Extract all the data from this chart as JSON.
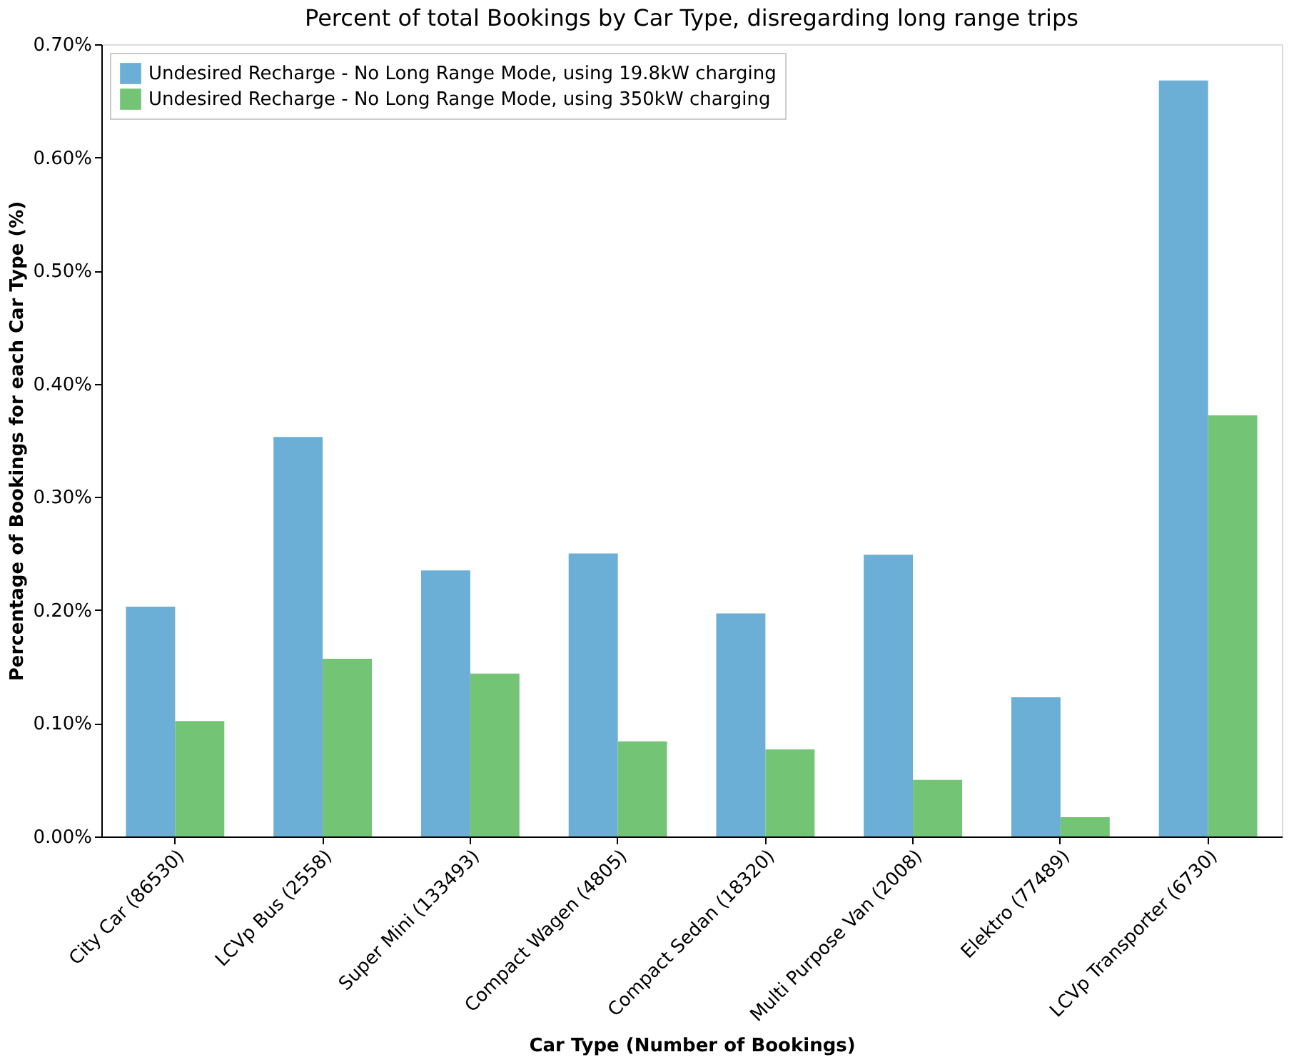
{
  "chart_data": {
    "type": "bar",
    "title": "Percent of total Bookings by Car Type, disregarding long range trips",
    "xlabel": "Car Type (Number of Bookings)",
    "ylabel": "Percentage of Bookings for each Car Type (%)",
    "categories": [
      "City Car (86530)",
      "LCVp Bus (2558)",
      "Super Mini (133493)",
      "Compact Wagen (4805)",
      "Compact Sedan (18320)",
      "Multi Purpose Van (2008)",
      "Elektro (77489)",
      "LCVp Transporter (6730)"
    ],
    "series": [
      {
        "name": "Undesired Recharge - No Long Range Mode, using 19.8kW charging",
        "color": "#6baed6",
        "values": [
          0.203,
          0.353,
          0.235,
          0.25,
          0.197,
          0.249,
          0.123,
          0.668
        ]
      },
      {
        "name": "Undesired Recharge - No Long Range Mode, using 350kW charging",
        "color": "#74c476",
        "values": [
          0.102,
          0.157,
          0.144,
          0.084,
          0.077,
          0.05,
          0.017,
          0.372
        ]
      }
    ],
    "ylim": [
      0,
      0.7
    ],
    "yticks": [
      {
        "value": 0,
        "label": "0.00%"
      },
      {
        "value": 0.1,
        "label": "0.10%"
      },
      {
        "value": 0.2,
        "label": "0.20%"
      },
      {
        "value": 0.3,
        "label": "0.30%"
      },
      {
        "value": 0.4,
        "label": "0.40%"
      },
      {
        "value": 0.5,
        "label": "0.50%"
      },
      {
        "value": 0.6,
        "label": "0.60%"
      },
      {
        "value": 0.7,
        "label": "0.70%"
      }
    ],
    "grid": false,
    "legend": "top left"
  }
}
